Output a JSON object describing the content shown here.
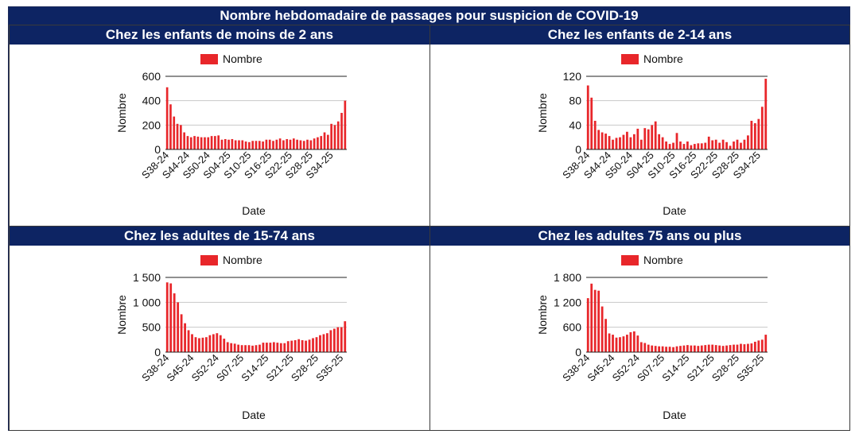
{
  "page_title": "Nombre hebdomadaire de passages pour suspicion de COVID-19",
  "colors": {
    "header_bg": "#0d2463",
    "header_text": "#ffffff",
    "bar": "#e8262a",
    "grid": "#c8c8c8"
  },
  "chart_data": [
    {
      "type": "bar",
      "title": "Chez les enfants de moins de 2 ans",
      "xlabel": "Date",
      "ylabel": "Nombre",
      "legend": "top-left",
      "series": [
        {
          "name": "Nombre",
          "values": [
            510,
            370,
            270,
            210,
            200,
            140,
            110,
            100,
            110,
            105,
            100,
            100,
            100,
            110,
            110,
            115,
            80,
            85,
            80,
            85,
            75,
            75,
            75,
            65,
            60,
            70,
            70,
            70,
            65,
            80,
            80,
            70,
            80,
            90,
            75,
            85,
            80,
            90,
            80,
            75,
            70,
            80,
            75,
            90,
            100,
            110,
            140,
            120,
            210,
            200,
            230,
            300,
            400
          ]
        }
      ],
      "x_start_week": 38,
      "x_start_year": 24,
      "tick_labels": [
        "S38-24",
        "S44-24",
        "S50-24",
        "S04-25",
        "S10-25",
        "S16-25",
        "S22-25",
        "S28-25",
        "S34-25"
      ],
      "tick_index": [
        0,
        6,
        12,
        18,
        24,
        30,
        36,
        42,
        48
      ],
      "ylim": [
        0,
        600
      ],
      "yticks": [
        0,
        200,
        400,
        600
      ],
      "ytick_labels": [
        "0",
        "200",
        "400",
        "600"
      ],
      "grid": true
    },
    {
      "type": "bar",
      "title": "Chez les enfants de 2-14 ans",
      "xlabel": "Date",
      "ylabel": "Nombre",
      "legend": "top-left",
      "series": [
        {
          "name": "Nombre",
          "values": [
            105,
            85,
            47,
            32,
            28,
            26,
            22,
            16,
            19,
            20,
            24,
            29,
            20,
            25,
            34,
            16,
            35,
            33,
            40,
            46,
            25,
            20,
            13,
            9,
            11,
            27,
            13,
            9,
            13,
            7,
            9,
            10,
            10,
            11,
            21,
            15,
            16,
            11,
            16,
            12,
            6,
            13,
            16,
            11,
            16,
            23,
            47,
            43,
            50,
            70,
            116
          ]
        }
      ],
      "x_start_week": 38,
      "x_start_year": 24,
      "tick_labels": [
        "S38-24",
        "S44-24",
        "S50-24",
        "S04-25",
        "S10-25",
        "S16-25",
        "S22-25",
        "S28-25",
        "S34-25"
      ],
      "tick_index": [
        0,
        6,
        12,
        18,
        24,
        30,
        36,
        42,
        48
      ],
      "ylim": [
        0,
        120
      ],
      "yticks": [
        0,
        40,
        80,
        120
      ],
      "ytick_labels": [
        "0",
        "40",
        "80",
        "120"
      ],
      "grid": true
    },
    {
      "type": "bar",
      "title": "Chez les adultes de 15-74 ans",
      "xlabel": "Date",
      "ylabel": "Nombre",
      "legend": "top-left",
      "series": [
        {
          "name": "Nombre",
          "values": [
            1400,
            1380,
            1180,
            1000,
            760,
            580,
            440,
            360,
            300,
            280,
            290,
            300,
            340,
            360,
            380,
            340,
            270,
            200,
            180,
            170,
            150,
            140,
            140,
            140,
            130,
            140,
            150,
            190,
            190,
            190,
            200,
            190,
            180,
            180,
            220,
            230,
            240,
            260,
            240,
            230,
            250,
            280,
            300,
            340,
            360,
            380,
            440,
            470,
            500,
            500,
            620
          ]
        }
      ],
      "x_start_week": 38,
      "x_start_year": 24,
      "tick_labels": [
        "S38-24",
        "S45-24",
        "S52-24",
        "S07-25",
        "S14-25",
        "S21-25",
        "S28-25",
        "S35-25"
      ],
      "tick_index": [
        0,
        7,
        14,
        21,
        28,
        35,
        42,
        49
      ],
      "ylim": [
        0,
        1500
      ],
      "yticks": [
        0,
        500,
        1000,
        1500
      ],
      "ytick_labels": [
        "0",
        "500",
        "1 000",
        "1 500"
      ],
      "grid": true
    },
    {
      "type": "bar",
      "title": "Chez les adultes 75 ans ou plus",
      "xlabel": "Date",
      "ylabel": "Nombre",
      "legend": "top-left",
      "series": [
        {
          "name": "Nombre",
          "values": [
            1300,
            1650,
            1500,
            1480,
            1100,
            800,
            450,
            420,
            350,
            360,
            380,
            420,
            480,
            500,
            400,
            240,
            220,
            180,
            160,
            150,
            140,
            140,
            130,
            130,
            120,
            140,
            150,
            160,
            170,
            160,
            160,
            150,
            160,
            170,
            180,
            180,
            170,
            160,
            150,
            160,
            170,
            180,
            180,
            200,
            190,
            200,
            210,
            250,
            280,
            300,
            420
          ]
        }
      ],
      "x_start_week": 38,
      "x_start_year": 24,
      "tick_labels": [
        "S38-24",
        "S45-24",
        "S52-24",
        "S07-25",
        "S14-25",
        "S21-25",
        "S28-25",
        "S35-25"
      ],
      "tick_index": [
        0,
        7,
        14,
        21,
        28,
        35,
        42,
        49
      ],
      "ylim": [
        0,
        1800
      ],
      "yticks": [
        0,
        600,
        1200,
        1800
      ],
      "ytick_labels": [
        "0",
        "600",
        "1 200",
        "1 800"
      ],
      "grid": true
    }
  ]
}
